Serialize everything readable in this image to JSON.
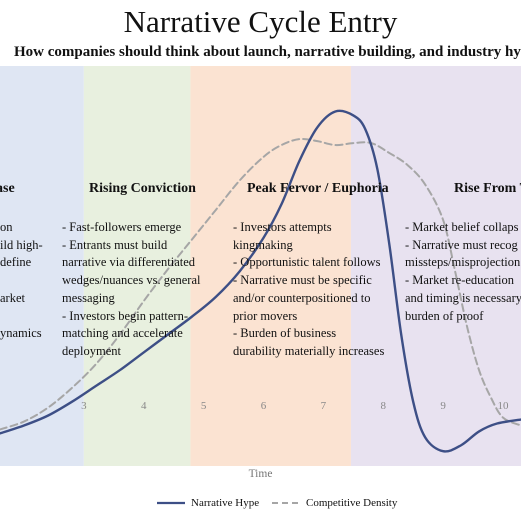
{
  "chart_data": {
    "type": "line",
    "title": "Narrative Cycle Entry",
    "subtitle": "How companies should think about launch, narrative building, and industry hype cycles",
    "xlabel": "Time",
    "ylabel": "",
    "xlim": [
      1.6,
      10.3
    ],
    "ylim": [
      0,
      10
    ],
    "x_ticks": [
      3,
      4,
      5,
      6,
      7,
      8,
      9,
      10
    ],
    "grid": false,
    "legend_position": "bottom-center",
    "phases": [
      {
        "name": "Phase",
        "title": "ase",
        "x_range": [
          1.6,
          3.0
        ],
        "color": "#dfe6f3",
        "lines": [
          "on",
          "ild high-",
          "define",
          "",
          "arket",
          "",
          "ynamics"
        ]
      },
      {
        "name": "Rising Conviction",
        "title": "Rising Conviction",
        "x_range": [
          3.0,
          4.78
        ],
        "color": "#e8f0df",
        "lines": [
          "- Fast-followers emerge",
          "- Entrants must build",
          "narrative via differentiated",
          "wedges/nuances vs. general",
          "messaging",
          "- Investors begin pattern-",
          "matching and accelerate",
          "deployment"
        ]
      },
      {
        "name": "Peak Fervor / Euphoria",
        "title": "Peak Fervor / Euphoria",
        "x_range": [
          4.78,
          7.46
        ],
        "color": "#fbe3d2",
        "lines": [
          "- Investors attempts",
          "kingmaking",
          "- Opportunistic talent follows",
          "- Narrative must be specific",
          "and/or counterpositioned to",
          "prior movers",
          "- Burden of business",
          "durability materially increases"
        ]
      },
      {
        "name": "Rise From The Ashes",
        "title": "Rise From T",
        "x_range": [
          7.46,
          10.3
        ],
        "color": "#e8e2f0",
        "lines": [
          "- Market belief collaps",
          "- Narrative must recog",
          "missteps/misprojection",
          "- Market re-education",
          "and timing is necessary",
          "burden of proof"
        ]
      }
    ],
    "series": [
      {
        "name": "Narrative Hype",
        "style": "solid",
        "color": "#3d4f86",
        "x": [
          1.6,
          2.0,
          2.4,
          2.8,
          3.2,
          3.6,
          4.0,
          4.4,
          4.8,
          5.2,
          5.6,
          6.0,
          6.3,
          6.6,
          6.9,
          7.2,
          7.5,
          7.7,
          7.9,
          8.1,
          8.3,
          8.5,
          8.7,
          9.0,
          9.3,
          9.6,
          9.9,
          10.3
        ],
        "y": [
          0.8,
          1.0,
          1.25,
          1.6,
          2.0,
          2.4,
          2.85,
          3.3,
          3.75,
          4.25,
          4.9,
          5.75,
          6.6,
          7.7,
          8.55,
          8.95,
          8.85,
          8.5,
          7.5,
          5.6,
          3.3,
          1.6,
          0.7,
          0.35,
          0.5,
          0.85,
          1.05,
          1.15
        ]
      },
      {
        "name": "Competitive Density",
        "style": "dashed",
        "color": "#a6a6a6",
        "x": [
          1.6,
          2.0,
          2.4,
          2.8,
          3.2,
          3.6,
          4.0,
          4.4,
          4.8,
          5.2,
          5.6,
          6.0,
          6.3,
          6.6,
          6.9,
          7.2,
          7.5,
          7.8,
          8.1,
          8.4,
          8.7,
          9.0,
          9.2,
          9.4,
          9.6,
          9.8,
          10.0,
          10.3
        ],
        "y": [
          0.9,
          1.1,
          1.45,
          1.95,
          2.55,
          3.3,
          4.15,
          4.95,
          5.7,
          6.45,
          7.2,
          7.8,
          8.1,
          8.25,
          8.2,
          8.1,
          8.15,
          8.15,
          7.9,
          7.6,
          7.1,
          6.2,
          4.9,
          3.5,
          2.4,
          1.7,
          1.2,
          1.0
        ]
      }
    ]
  }
}
